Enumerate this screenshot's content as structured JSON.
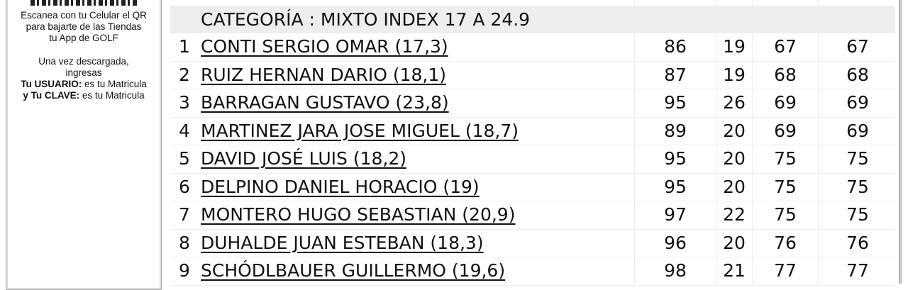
{
  "sidebar": {
    "line1": "Escanea con tu Celular el QR",
    "line2": "para bajarte de las Tiendas",
    "line3": "tu App de GOLF",
    "line4": "Una vez descargada,",
    "line5": "ingresas",
    "user_label": "Tu USUARIO:",
    "user_text": " es tu Matricula",
    "pass_label": "y Tu CLAVE:",
    "pass_text": " es tu Matricula"
  },
  "table": {
    "category": "CATEGORÍA : MIXTO INDEX 17 A 24.9",
    "rows": [
      {
        "pos": "1",
        "name": "CONTI SERGIO OMAR (17,3)",
        "gross": "86",
        "hcp": "19",
        "net": "67",
        "total": "67"
      },
      {
        "pos": "2",
        "name": "RUIZ HERNAN DARIO (18,1)",
        "gross": "87",
        "hcp": "19",
        "net": "68",
        "total": "68"
      },
      {
        "pos": "3",
        "name": "BARRAGAN GUSTAVO (23,8)",
        "gross": "95",
        "hcp": "26",
        "net": "69",
        "total": "69"
      },
      {
        "pos": "4",
        "name": "MARTINEZ JARA JOSE MIGUEL (18,7)",
        "gross": "89",
        "hcp": "20",
        "net": "69",
        "total": "69"
      },
      {
        "pos": "5",
        "name": "DAVID JOSÉ LUIS (18,2)",
        "gross": "95",
        "hcp": "20",
        "net": "75",
        "total": "75"
      },
      {
        "pos": "6",
        "name": "DELPINO DANIEL HORACIO (19)",
        "gross": "95",
        "hcp": "20",
        "net": "75",
        "total": "75"
      },
      {
        "pos": "7",
        "name": "MONTERO HUGO SEBASTIAN (20,9)",
        "gross": "97",
        "hcp": "22",
        "net": "75",
        "total": "75"
      },
      {
        "pos": "8",
        "name": "DUHALDE JUAN ESTEBAN (18,3)",
        "gross": "96",
        "hcp": "20",
        "net": "76",
        "total": "76"
      },
      {
        "pos": "9",
        "name": "SCHÓDLBAUER GUILLERMO (19,6)",
        "gross": "98",
        "hcp": "21",
        "net": "77",
        "total": "77"
      }
    ]
  }
}
